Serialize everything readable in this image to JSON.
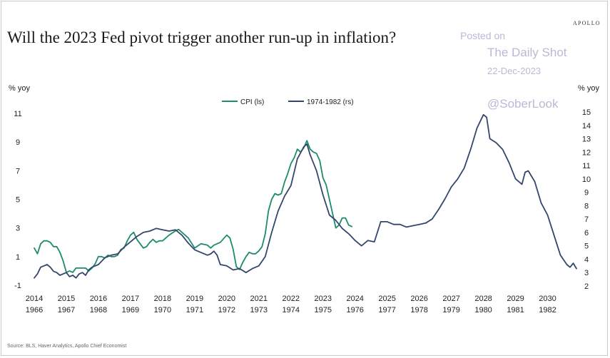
{
  "header": {
    "title": "Will the 2023 Fed pivot trigger another run-up in inflation?",
    "brand": "APOLLO"
  },
  "watermark": {
    "line1": "Posted on",
    "line2": "The Daily Shot",
    "line3": "22-Dec-2023",
    "line4": "@SoberLook"
  },
  "footer": {
    "source": "Source: BLS, Haver Analytics, Apollo Chief Economist"
  },
  "chart_data": {
    "type": "line",
    "ylabel_left": "% yoy",
    "ylabel_right": "% yoy",
    "legend_position": "top-center",
    "grid": false,
    "x_ticks_top": [
      "2014",
      "2015",
      "2016",
      "2017",
      "2018",
      "2019",
      "2020",
      "2021",
      "2022",
      "2023",
      "2024",
      "2025",
      "2026",
      "2027",
      "2028",
      "2029",
      "2030"
    ],
    "x_ticks_bottom": [
      "1966",
      "1967",
      "1968",
      "1969",
      "1970",
      "1971",
      "1972",
      "1973",
      "1974",
      "1975",
      "1976",
      "1977",
      "1978",
      "1979",
      "1980",
      "1981",
      "1982"
    ],
    "xlim": [
      2014,
      2030.9
    ],
    "ylim_left": [
      -1,
      11
    ],
    "yticks_left": [
      -1,
      1,
      3,
      5,
      7,
      9,
      11
    ],
    "ylim_right": [
      2,
      15
    ],
    "yticks_right": [
      2,
      3,
      4,
      5,
      6,
      7,
      8,
      9,
      10,
      11,
      12,
      13,
      14,
      15
    ],
    "series": [
      {
        "name": "CPI (ls)",
        "axis": "left",
        "color": "#1e8a6e",
        "x": [
          2014.0,
          2014.1,
          2014.2,
          2014.3,
          2014.4,
          2014.5,
          2014.6,
          2014.7,
          2014.8,
          2014.9,
          2015.0,
          2015.1,
          2015.2,
          2015.3,
          2015.4,
          2015.5,
          2015.6,
          2015.7,
          2015.8,
          2015.9,
          2016.0,
          2016.1,
          2016.2,
          2016.3,
          2016.4,
          2016.5,
          2016.6,
          2016.7,
          2016.8,
          2016.9,
          2017.0,
          2017.1,
          2017.2,
          2017.3,
          2017.4,
          2017.5,
          2017.6,
          2017.7,
          2017.8,
          2017.9,
          2018.0,
          2018.2,
          2018.4,
          2018.5,
          2018.6,
          2018.8,
          2019.0,
          2019.2,
          2019.4,
          2019.5,
          2019.6,
          2019.8,
          2020.0,
          2020.1,
          2020.2,
          2020.3,
          2020.4,
          2020.5,
          2020.6,
          2020.7,
          2020.8,
          2020.9,
          2021.0,
          2021.1,
          2021.2,
          2021.3,
          2021.4,
          2021.5,
          2021.6,
          2021.7,
          2021.8,
          2021.9,
          2022.0,
          2022.1,
          2022.2,
          2022.3,
          2022.4,
          2022.5,
          2022.6,
          2022.7,
          2022.8,
          2022.9,
          2023.0,
          2023.1,
          2023.2,
          2023.3,
          2023.4,
          2023.5,
          2023.6,
          2023.7,
          2023.8,
          2023.9
        ],
        "values": [
          1.6,
          1.2,
          1.9,
          2.1,
          2.1,
          2.0,
          1.7,
          1.7,
          1.3,
          0.7,
          -0.1,
          0.0,
          -0.1,
          0.2,
          0.2,
          0.2,
          0.2,
          0.0,
          0.2,
          0.5,
          1.0,
          1.0,
          0.9,
          1.1,
          1.0,
          1.0,
          1.1,
          1.5,
          1.6,
          2.1,
          2.5,
          2.7,
          2.2,
          1.9,
          1.6,
          1.7,
          2.0,
          2.2,
          2.0,
          2.1,
          2.1,
          2.5,
          2.8,
          2.9,
          2.7,
          2.3,
          1.6,
          1.9,
          1.8,
          1.6,
          1.8,
          2.0,
          2.5,
          2.3,
          1.5,
          0.3,
          0.1,
          0.6,
          1.0,
          1.3,
          1.2,
          1.2,
          1.4,
          1.7,
          2.6,
          4.2,
          5.0,
          5.4,
          5.3,
          5.4,
          6.2,
          6.8,
          7.5,
          7.9,
          8.5,
          8.3,
          8.6,
          9.1,
          8.5,
          8.3,
          8.2,
          7.7,
          6.5,
          6.0,
          5.0,
          4.0,
          3.0,
          3.2,
          3.7,
          3.7,
          3.2,
          3.1
        ]
      },
      {
        "name": "1974-1982 (rs)",
        "axis": "right",
        "color": "#34466b",
        "x": [
          2014.0,
          2014.1,
          2014.2,
          2014.3,
          2014.4,
          2014.5,
          2014.6,
          2014.7,
          2014.8,
          2014.9,
          2015.0,
          2015.1,
          2015.2,
          2015.3,
          2015.4,
          2015.5,
          2015.6,
          2015.7,
          2015.8,
          2016.0,
          2016.2,
          2016.4,
          2016.6,
          2016.8,
          2017.0,
          2017.2,
          2017.4,
          2017.6,
          2017.8,
          2018.0,
          2018.2,
          2018.4,
          2018.6,
          2018.8,
          2019.0,
          2019.2,
          2019.4,
          2019.5,
          2019.6,
          2019.7,
          2019.8,
          2020.0,
          2020.2,
          2020.4,
          2020.6,
          2020.8,
          2021.0,
          2021.2,
          2021.4,
          2021.6,
          2021.8,
          2022.0,
          2022.2,
          2022.4,
          2022.5,
          2022.6,
          2022.8,
          2023.0,
          2023.2,
          2023.4,
          2023.6,
          2023.8,
          2024.0,
          2024.2,
          2024.4,
          2024.6,
          2024.8,
          2025.0,
          2025.2,
          2025.4,
          2025.6,
          2025.8,
          2026.0,
          2026.2,
          2026.4,
          2026.6,
          2026.8,
          2027.0,
          2027.2,
          2027.4,
          2027.6,
          2027.8,
          2028.0,
          2028.1,
          2028.2,
          2028.4,
          2028.6,
          2028.8,
          2029.0,
          2029.2,
          2029.3,
          2029.4,
          2029.6,
          2029.8,
          2030.0,
          2030.2,
          2030.4,
          2030.6,
          2030.7,
          2030.8,
          2030.9
        ],
        "values": [
          2.6,
          2.9,
          3.4,
          3.5,
          3.6,
          3.4,
          3.1,
          3.0,
          2.8,
          2.9,
          3.0,
          2.7,
          2.8,
          2.6,
          2.9,
          3.0,
          2.8,
          3.2,
          3.4,
          3.6,
          4.1,
          4.3,
          4.4,
          4.9,
          5.3,
          5.7,
          6.0,
          6.1,
          6.3,
          6.2,
          6.1,
          6.2,
          5.8,
          5.2,
          4.7,
          4.5,
          4.3,
          4.4,
          4.6,
          4.3,
          3.6,
          3.5,
          3.2,
          3.3,
          3.0,
          3.3,
          3.5,
          4.2,
          6.0,
          7.6,
          8.7,
          9.5,
          11.5,
          12.4,
          12.6,
          11.8,
          10.6,
          8.8,
          7.3,
          6.9,
          6.3,
          5.9,
          5.4,
          5.0,
          5.4,
          5.3,
          6.8,
          6.8,
          6.6,
          6.6,
          6.4,
          6.5,
          6.6,
          6.7,
          7.0,
          7.7,
          8.5,
          9.4,
          10.0,
          10.8,
          12.2,
          13.8,
          14.8,
          14.6,
          13.0,
          12.7,
          12.2,
          11.2,
          10.0,
          9.6,
          10.5,
          10.6,
          9.8,
          8.2,
          7.3,
          5.8,
          4.3,
          3.6,
          3.4,
          3.7,
          3.3
        ]
      }
    ]
  }
}
